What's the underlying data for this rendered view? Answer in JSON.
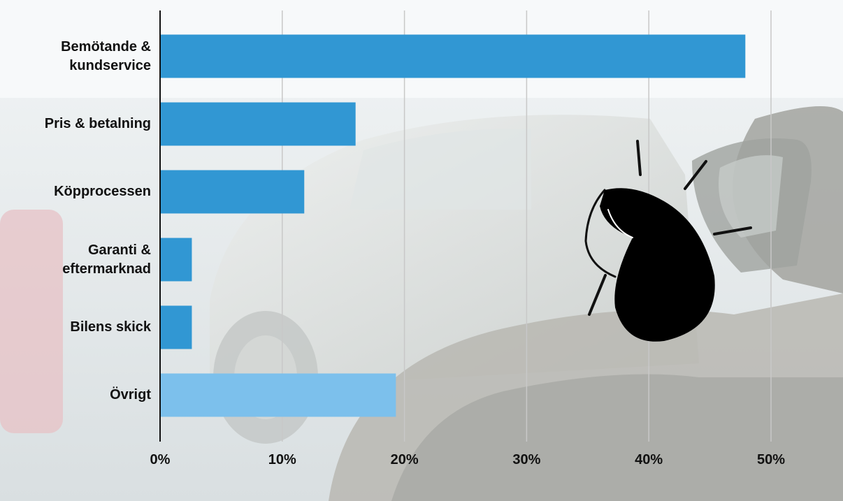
{
  "chart_data": {
    "type": "bar",
    "orientation": "horizontal",
    "categories": [
      "Bemötande & kundservice",
      "Pris & betalning",
      "Köpprocessen",
      "Garanti & eftermarknad",
      "Bilens skick",
      "Övrigt"
    ],
    "category_label_lines": [
      [
        "Bemötande &",
        "kundservice"
      ],
      [
        "Pris & betalning"
      ],
      [
        "Köpprocessen"
      ],
      [
        "Garanti &",
        "eftermarknad"
      ],
      [
        "Bilens skick"
      ],
      [
        "Övrigt"
      ]
    ],
    "values": [
      47.9,
      16.0,
      11.8,
      2.6,
      2.6,
      19.3
    ],
    "xlim": [
      0,
      50
    ],
    "x_ticks": [
      0,
      10,
      20,
      30,
      40,
      50
    ],
    "x_tick_labels": [
      "0%",
      "10%",
      "20%",
      "30%",
      "40%",
      "50%"
    ],
    "title": "",
    "xlabel": "",
    "ylabel": "",
    "grid": "vertical",
    "bar_colors": [
      "#3197d3",
      "#3197d3",
      "#3197d3",
      "#3197d3",
      "#3197d3",
      "#7cc0ec"
    ]
  },
  "decoration": {
    "background_image": "blurred car showroom photo",
    "icon": "kiss-lips-icon"
  }
}
